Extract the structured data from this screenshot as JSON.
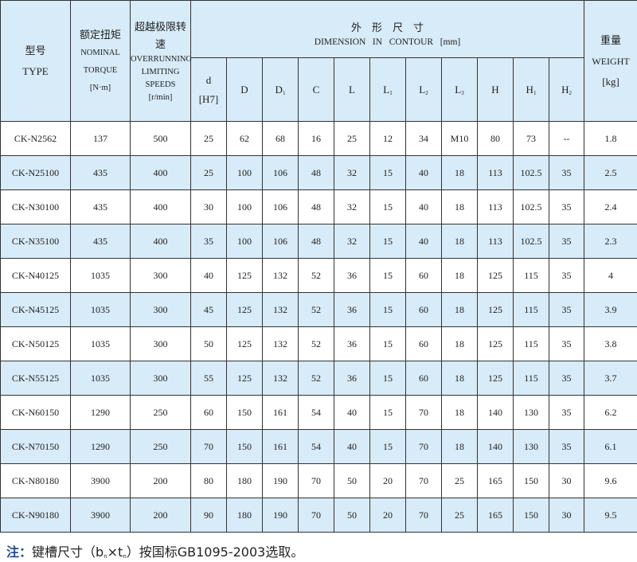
{
  "header": {
    "type_cn": "型号",
    "type_en": "TYPE",
    "torque_cn": "额定扭矩",
    "torque_en1": "NOMINAL",
    "torque_en2": "TORQUE",
    "torque_unit": "[N·m]",
    "speed_cn": "超越极限转速",
    "speed_en1": "OVERRUNNING",
    "speed_en2": "LIMITING SPEEDS",
    "speed_unit": "[r/min]",
    "dim_cn": "外　形　尺　寸",
    "dim_en": "DIMENSION   IN   CONTOUR   [mm]",
    "weight_cn": "重量",
    "weight_en": "WEIGHT",
    "weight_unit": "[kg]",
    "dims": [
      {
        "main": "d",
        "sub": "",
        "extra": "[H7]"
      },
      {
        "main": "D",
        "sub": ""
      },
      {
        "main": "D",
        "sub": "1"
      },
      {
        "main": "C",
        "sub": ""
      },
      {
        "main": "L",
        "sub": ""
      },
      {
        "main": "L",
        "sub": "1"
      },
      {
        "main": "L",
        "sub": "2"
      },
      {
        "main": "L",
        "sub": "3"
      },
      {
        "main": "H",
        "sub": ""
      },
      {
        "main": "H",
        "sub": "1"
      },
      {
        "main": "H",
        "sub": "2"
      }
    ]
  },
  "rows": [
    [
      "CK-N2562",
      "137",
      "500",
      "25",
      "62",
      "68",
      "16",
      "25",
      "12",
      "34",
      "M10",
      "80",
      "73",
      "--",
      "1.8"
    ],
    [
      "CK-N25100",
      "435",
      "400",
      "25",
      "100",
      "106",
      "48",
      "32",
      "15",
      "40",
      "18",
      "113",
      "102.5",
      "35",
      "2.5"
    ],
    [
      "CK-N30100",
      "435",
      "400",
      "30",
      "100",
      "106",
      "48",
      "32",
      "15",
      "40",
      "18",
      "113",
      "102.5",
      "35",
      "2.4"
    ],
    [
      "CK-N35100",
      "435",
      "400",
      "35",
      "100",
      "106",
      "48",
      "32",
      "15",
      "40",
      "18",
      "113",
      "102.5",
      "35",
      "2.3"
    ],
    [
      "CK-N40125",
      "1035",
      "300",
      "40",
      "125",
      "132",
      "52",
      "36",
      "15",
      "60",
      "18",
      "125",
      "115",
      "35",
      "4"
    ],
    [
      "CK-N45125",
      "1035",
      "300",
      "45",
      "125",
      "132",
      "52",
      "36",
      "15",
      "60",
      "18",
      "125",
      "115",
      "35",
      "3.9"
    ],
    [
      "CK-N50125",
      "1035",
      "300",
      "50",
      "125",
      "132",
      "52",
      "36",
      "15",
      "60",
      "18",
      "125",
      "115",
      "35",
      "3.8"
    ],
    [
      "CK-N55125",
      "1035",
      "300",
      "55",
      "125",
      "132",
      "52",
      "36",
      "15",
      "60",
      "18",
      "125",
      "115",
      "35",
      "3.7"
    ],
    [
      "CK-N60150",
      "1290",
      "250",
      "60",
      "150",
      "161",
      "54",
      "40",
      "15",
      "70",
      "18",
      "140",
      "130",
      "35",
      "6.2"
    ],
    [
      "CK-N70150",
      "1290",
      "250",
      "70",
      "150",
      "161",
      "54",
      "40",
      "15",
      "70",
      "18",
      "140",
      "130",
      "35",
      "6.1"
    ],
    [
      "CK-N80180",
      "3900",
      "200",
      "80",
      "180",
      "190",
      "70",
      "50",
      "20",
      "70",
      "25",
      "165",
      "150",
      "30",
      "9.6"
    ],
    [
      "CK-N90180",
      "3900",
      "200",
      "90",
      "180",
      "190",
      "70",
      "50",
      "20",
      "70",
      "25",
      "165",
      "150",
      "30",
      "9.5"
    ]
  ],
  "note": {
    "label": "注：",
    "text_before": "键槽尺寸（b",
    "sub1": "n",
    "times": "×t",
    "sub2": "n",
    "text_after": "）按国标GB1095-2003选取。"
  },
  "colors": {
    "header_bg": "#d7ebf8",
    "note_label": "#1f4f9a"
  }
}
